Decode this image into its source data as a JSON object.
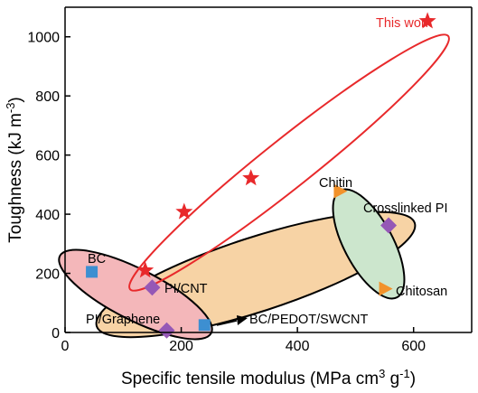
{
  "chart_data": {
    "type": "scatter",
    "xlabel": "Specific tensile modulus (MPa cm<sup>3</sup> g<sup>-1</sup>)",
    "ylabel": "Toughness (kJ m<sup>-3</sup>)",
    "xlim": [
      0,
      700
    ],
    "ylim": [
      0,
      1100
    ],
    "x_ticks": [
      0,
      200,
      400,
      600
    ],
    "y_ticks": [
      0,
      200,
      400,
      600,
      800,
      1000
    ],
    "grid": false,
    "colors": {
      "this_work": "#e8292b",
      "square": "#3d8fd1",
      "diamond": "#9558b6",
      "triangle": "#f2922b",
      "orange_fill": "#f7d3a5",
      "pink_fill": "#f4b7ba",
      "green_fill": "#cce6cd"
    },
    "series": [
      {
        "name": "This work",
        "marker": "star",
        "color": "#e8292b",
        "points": [
          [
            138,
            210
          ],
          [
            205,
            408
          ],
          [
            320,
            522
          ],
          [
            624,
            1053
          ]
        ]
      },
      {
        "name": "BC",
        "marker": "square",
        "color": "#3d8fd1",
        "points": [
          [
            46,
            205
          ]
        ]
      },
      {
        "name": "BC/PEDOT/SWCNT",
        "marker": "square",
        "color": "#3d8fd1",
        "points": [
          [
            240,
            25
          ]
        ]
      },
      {
        "name": "PI/CNT",
        "marker": "diamond",
        "color": "#9558b6",
        "points": [
          [
            150,
            152
          ]
        ]
      },
      {
        "name": "PI/Graphene",
        "marker": "diamond",
        "color": "#9558b6",
        "points": [
          [
            175,
            7
          ]
        ]
      },
      {
        "name": "Crosslinked PI",
        "marker": "diamond",
        "color": "#9558b6",
        "points": [
          [
            557,
            362
          ]
        ]
      },
      {
        "name": "Chitin",
        "marker": "triangle",
        "color": "#f2922b",
        "points": [
          [
            472,
            478
          ]
        ]
      },
      {
        "name": "Chitosan",
        "marker": "triangle",
        "color": "#f2922b",
        "points": [
          [
            550,
            148
          ]
        ]
      }
    ],
    "annotations": {
      "this_work": "This work",
      "bc": "BC",
      "pi_cnt": "PI/CNT",
      "pi_graphene": "PI/Graphene",
      "bc_pedot": "BC/PEDOT/SWCNT",
      "chitin": "Chitin",
      "crosslinked_pi": "Crosslinked PI",
      "chitosan": "Chitosan"
    }
  }
}
